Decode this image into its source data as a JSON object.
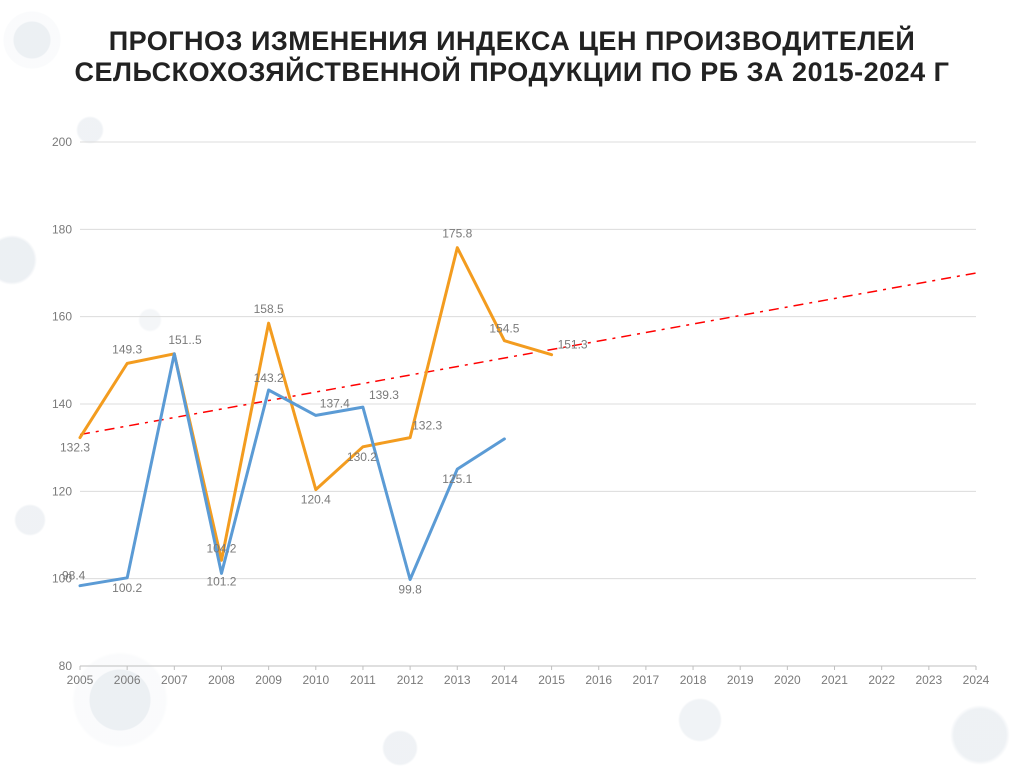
{
  "title": "ПРОГНОЗ ИЗМЕНЕНИЯ ИНДЕКСА ЦЕН ПРОИЗВОДИТЕЛЕЙ СЕЛЬСКОХОЗЯЙСТВЕННОЙ ПРОДУКЦИИ ПО РБ ЗА 2015-2024 Г",
  "chart": {
    "type": "line",
    "x_categories": [
      "2005",
      "2006",
      "2007",
      "2008",
      "2009",
      "2010",
      "2011",
      "2012",
      "2013",
      "2014",
      "2015",
      "2016",
      "2017",
      "2018",
      "2019",
      "2020",
      "2021",
      "2022",
      "2023",
      "2024"
    ],
    "ylim": [
      80,
      200
    ],
    "ytick_step": 20,
    "y_ticks": [
      80,
      100,
      120,
      140,
      160,
      180,
      200
    ],
    "grid_color": "#dcdcdc",
    "axis_color": "#bfbfbf",
    "background_color": "#ffffff",
    "tick_font_color": "#7a7a7a",
    "tick_font_size": 12,
    "data_label_font_size": 12,
    "data_label_color": "#595959",
    "series": [
      {
        "name": "orange-series",
        "color": "#f39c1f",
        "line_width": 3,
        "values": [
          132.3,
          149.3,
          151.5,
          104.2,
          158.5,
          120.4,
          130.2,
          132.3,
          175.8,
          154.5,
          151.3
        ],
        "labels_above": true
      },
      {
        "name": "blue-series",
        "color": "#5b9bd5",
        "line_width": 3,
        "values": [
          98.4,
          100.2,
          151.5,
          101.2,
          143.2,
          137.4,
          139.3,
          99.8,
          125.1,
          132.0
        ],
        "label_map": {
          "0": "98.4",
          "1": "100.2",
          "2": "151..5",
          "3": "101.2",
          "4": "143.2",
          "5": "137.4",
          "6": "139.3",
          "7": "99.8",
          "8": "125.1"
        },
        "labels_above": false
      }
    ],
    "trendline": {
      "color": "#ff0000",
      "dash": "10 6 3 6",
      "line_width": 1.5,
      "start_y": 133,
      "end_y": 170
    }
  }
}
